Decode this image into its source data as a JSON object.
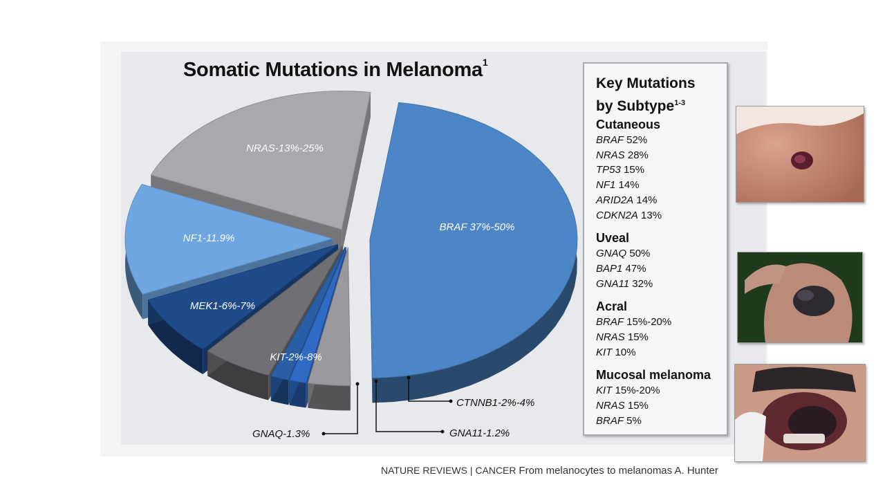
{
  "chart_data": {
    "type": "pie",
    "title": "Somatic Mutations in Melanoma",
    "title_superscript": "1",
    "slices": [
      {
        "label": "BRAF 37%-50%",
        "value": 43.5,
        "color": "#4d86c6"
      },
      {
        "label": "CTNNB1-2%-4%",
        "value": 3,
        "color": "#9a9a9e"
      },
      {
        "label": "GNA11-1.2%",
        "value": 1.2,
        "color": "#2f6bc4"
      },
      {
        "label": "GNAQ-1.3%",
        "value": 1.3,
        "color": "#2a5fa6"
      },
      {
        "label": "KIT-2%-8%",
        "value": 5,
        "color": "#707074"
      },
      {
        "label": "MEK1-6%-7%",
        "value": 6.5,
        "color": "#1f4b8a"
      },
      {
        "label": "NF1-11.9%",
        "value": 11.9,
        "color": "#6da6e0"
      },
      {
        "label": "NRAS-13%-25%",
        "value": 19,
        "color": "#a9a9ad"
      }
    ]
  },
  "key": {
    "title_line1": "Key Mutations",
    "title_line2": "by Subtype",
    "title_superscript": "1-3",
    "groups": [
      {
        "name": "Cutaneous",
        "items": [
          {
            "gene": "BRAF",
            "pct": "52%"
          },
          {
            "gene": "NRAS",
            "pct": "28%"
          },
          {
            "gene": "TP53",
            "pct": "15%"
          },
          {
            "gene": "NF1",
            "pct": "14%"
          },
          {
            "gene": "ARID2A",
            "pct": "14%"
          },
          {
            "gene": "CDKN2A",
            "pct": "13%"
          }
        ]
      },
      {
        "name": "Uveal",
        "items": [
          {
            "gene": "GNAQ",
            "pct": "50%"
          },
          {
            "gene": "BAP1",
            "pct": "47%"
          },
          {
            "gene": "GNA11",
            "pct": "32%"
          }
        ]
      },
      {
        "name": "Acral",
        "items": [
          {
            "gene": "BRAF",
            "pct": "15%-20%"
          },
          {
            "gene": "NRAS",
            "pct": "15%"
          },
          {
            "gene": "KIT",
            "pct": "10%"
          }
        ]
      },
      {
        "name": "Mucosal melanoma",
        "items": [
          {
            "gene": "KIT",
            "pct": "15%-20%"
          },
          {
            "gene": "NRAS",
            "pct": "15%"
          },
          {
            "gene": "BRAF",
            "pct": "5%"
          }
        ]
      }
    ]
  },
  "footer": {
    "source": "NATURE REVIEWS | CANCER",
    "caption": "From melanocytes to melanomas A. Hunter"
  },
  "colors": {
    "slide_bg": "#e8e9ec",
    "key_border": "#a9a9ad"
  }
}
